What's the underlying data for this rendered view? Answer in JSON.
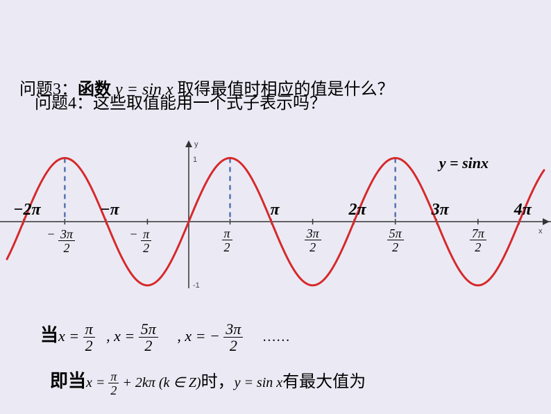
{
  "questions": {
    "q3_prefix": "问题3：",
    "q3_bold": "函数",
    "q3_func": " y = sin x ",
    "q3_rest": "取得最值时相应的值是什么？",
    "q4": "问题4：这些取值能用一个式子表示吗？"
  },
  "chart": {
    "type": "line",
    "function_label": "y = sinx",
    "x_domain_pi": [
      -2.2,
      4.3
    ],
    "ylim": [
      -1.1,
      1.3
    ],
    "curve_color": "#d6292b",
    "curve_width": 3,
    "axis_color": "#333333",
    "dashed_color": "#5472b2",
    "dashed_width": 2.5,
    "background_color": "#ebeaf4",
    "y_axis_x_pi": 0,
    "y_ticks": [
      {
        "v": 1,
        "label": "1"
      },
      {
        "v": -1,
        "label": "-1"
      }
    ],
    "x_axis_label": "x",
    "y_axis_label": "y",
    "integer_pi_ticks": [
      {
        "v": -2,
        "label": "−2π"
      },
      {
        "v": -1,
        "label": "−π"
      },
      {
        "v": 1,
        "label": "π"
      },
      {
        "v": 2,
        "label": "2π"
      },
      {
        "v": 3,
        "label": "3π"
      },
      {
        "v": 4,
        "label": "4π"
      }
    ],
    "half_pi_ticks": [
      {
        "v": -1.5,
        "num": "3π",
        "den": "2",
        "neg": true
      },
      {
        "v": -0.5,
        "num": "π",
        "den": "2",
        "neg": true
      },
      {
        "v": 0.5,
        "num": "π",
        "den": "2",
        "neg": false
      },
      {
        "v": 1.5,
        "num": "3π",
        "den": "2",
        "neg": false
      },
      {
        "v": 2.5,
        "num": "5π",
        "den": "2",
        "neg": false
      },
      {
        "v": 3.5,
        "num": "7π",
        "den": "2",
        "neg": false
      }
    ],
    "dashed_lines_at_pi": [
      -1.5,
      0.5,
      2.5
    ],
    "samples": 240
  },
  "math": {
    "dang": "当",
    "x_eq": "x = ",
    "f_pi_2_num": "π",
    "f_pi_2_den": "2",
    "comma_x": ", x = ",
    "f_5pi_2_num": "5π",
    "f_5pi_2_den": "2",
    "neg_x": ", x = − ",
    "f_3pi_2_num": "3π",
    "f_3pi_2_den": "2",
    "dots": "……",
    "jidang": "即当",
    "line2_a": "x = ",
    "line2_plus": " + 2kπ (k ∈ Z)",
    "shi": "时，",
    "line2_eq": "y = sin x",
    "line2_end": "有最大值为"
  }
}
